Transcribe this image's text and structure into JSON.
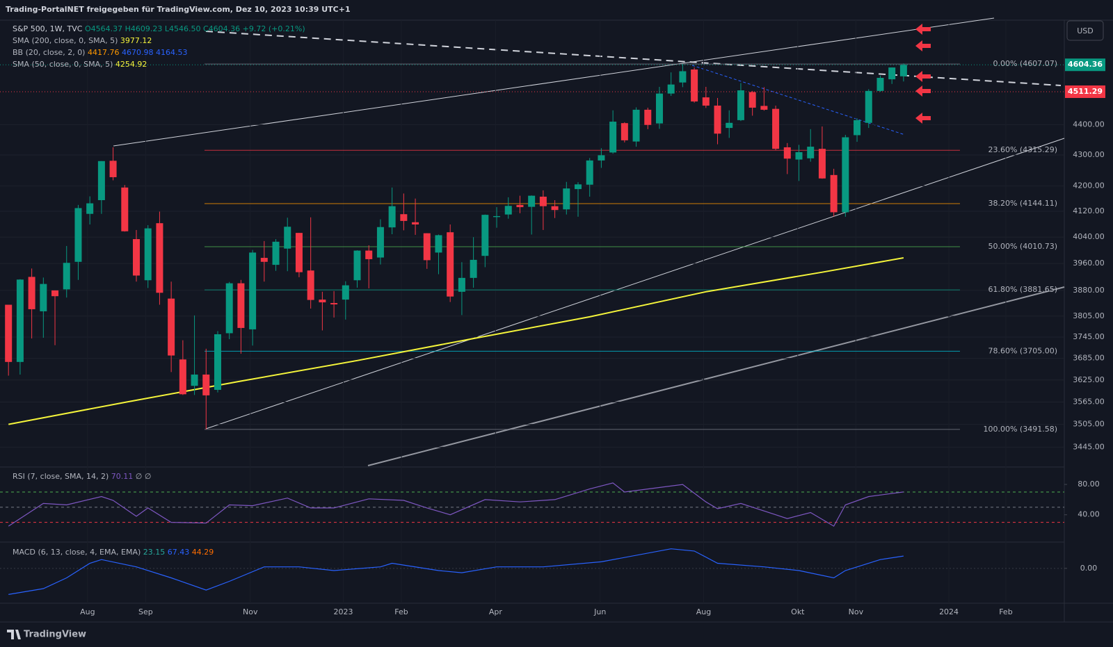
{
  "header": {
    "text": "Trading-PortalNET freigegeben für TradingView.com, Dez 10, 2023 10:39 UTC+1",
    "currency": "USD",
    "footer": "TradingView"
  },
  "legend": {
    "symbol": "S&P 500, 1W, TVC",
    "ohlc": "O4564.37 H4609.23 L4546.50 C4604.36",
    "change": "+9.72 (+0.21%)",
    "sma200": "SMA (200, close, 0, SMA, 5)",
    "sma200_value": "3977.12",
    "bb": "BB (20, close, 2, 0)",
    "bb_values": [
      "4417.76",
      "4670.98",
      "4164.53"
    ],
    "sma50": "SMA (50, close, 0, SMA, 5)",
    "sma50_value": "4254.92"
  },
  "chart_data": [
    {
      "type": "candlestick",
      "up_color": "#089981",
      "down_color": "#f23645",
      "log_scale": true,
      "grid": true,
      "xlim": [
        -0.73,
        90.83
      ],
      "ylim": [
        3397,
        4763
      ],
      "xticks": [
        {
          "value": 6.8,
          "label": "Aug"
        },
        {
          "value": 11.8,
          "label": "Sep"
        },
        {
          "value": 20.8,
          "label": "Nov"
        },
        {
          "value": 28.8,
          "label": "2023"
        },
        {
          "value": 33.8,
          "label": "Feb"
        },
        {
          "value": 41.9,
          "label": "Apr"
        },
        {
          "value": 50.9,
          "label": "Jun"
        },
        {
          "value": 59.8,
          "label": "Aug"
        },
        {
          "value": 67.9,
          "label": "Okt"
        },
        {
          "value": 72.9,
          "label": "Nov"
        },
        {
          "value": 80.9,
          "label": "2024"
        },
        {
          "value": 85.8,
          "label": "Feb"
        }
      ],
      "yticks": [
        {
          "value": 4400,
          "label": "4400.00"
        },
        {
          "value": 4300,
          "label": "4300.00"
        },
        {
          "value": 4200,
          "label": "4200.00"
        },
        {
          "value": 4120,
          "label": "4120.00"
        },
        {
          "value": 4040,
          "label": "4040.00"
        },
        {
          "value": 3960,
          "label": "3960.00"
        },
        {
          "value": 3880,
          "label": "3880.00"
        },
        {
          "value": 3805,
          "label": "3805.00"
        },
        {
          "value": 3745,
          "label": "3745.00"
        },
        {
          "value": 3685,
          "label": "3685.00"
        },
        {
          "value": 3625,
          "label": "3625.00"
        },
        {
          "value": 3565,
          "label": "3565.00"
        },
        {
          "value": 3505,
          "label": "3505.00"
        },
        {
          "value": 3445,
          "label": "3445.00"
        }
      ],
      "open": [
        3838,
        3675,
        3920,
        3819,
        3880,
        3883,
        3965,
        4112,
        4155,
        4281,
        4195,
        4034,
        3910,
        4083,
        3856,
        3682,
        3609,
        3640,
        3598,
        3756,
        3901,
        3767,
        3977,
        3956,
        4005,
        4053,
        3939,
        3853,
        3843,
        3853,
        3910,
        3999,
        3978,
        4070,
        4111,
        4086,
        4052,
        3993,
        4055,
        3876,
        3917,
        3983,
        4102,
        4110,
        4140,
        4134,
        4166,
        4136,
        4126,
        4190,
        4204,
        4282,
        4308,
        4405,
        4344,
        4450,
        4404,
        4505,
        4543,
        4588,
        4492,
        4464,
        4389,
        4415,
        4510,
        4463,
        4453,
        4325,
        4285,
        4289,
        4320,
        4235,
        4117,
        4365,
        4406,
        4514,
        4554,
        4564.37
      ],
      "high": [
        3838,
        3913,
        3945,
        3918,
        3880,
        4013,
        4140,
        4167,
        4280,
        4325,
        4203,
        4062,
        4077,
        4119,
        3906,
        3736,
        3807,
        3712,
        3762,
        3905,
        3911,
        4001,
        4028,
        4034,
        4100,
        4053,
        4101,
        3876,
        3878,
        3907,
        4000,
        4015,
        4095,
        4195,
        4176,
        4160,
        4052,
        4048,
        4079,
        3964,
        4040,
        4110,
        4133,
        4164,
        4169,
        4170,
        4186,
        4155,
        4213,
        4212,
        4290,
        4322,
        4448,
        4408,
        4458,
        4457,
        4528,
        4578,
        4607,
        4595,
        4528,
        4490,
        4448,
        4541,
        4514,
        4527,
        4464,
        4339,
        4333,
        4385,
        4394,
        4255,
        4366,
        4421,
        4520,
        4567,
        4595,
        4609.23
      ],
      "low": [
        3637,
        3640,
        3741,
        3743,
        3722,
        3859,
        3911,
        4079,
        4112,
        4218,
        4057,
        3906,
        3887,
        3838,
        3647,
        3584,
        3584,
        3492,
        3591,
        3739,
        3698,
        3721,
        3906,
        3938,
        3937,
        3919,
        3827,
        3764,
        3801,
        3795,
        3888,
        3886,
        3957,
        4049,
        4061,
        4047,
        3944,
        3928,
        3846,
        3808,
        3888,
        3949,
        4069,
        4097,
        4114,
        4048,
        4062,
        4099,
        4110,
        4103,
        4166,
        4258,
        4304,
        4341,
        4327,
        4385,
        4386,
        4497,
        4527,
        4474,
        4456,
        4335,
        4356,
        4412,
        4430,
        4447,
        4316,
        4238,
        4216,
        4278,
        4223,
        4104,
        4103,
        4343,
        4389,
        4511,
        4538,
        4546.5
      ],
      "close": [
        3675,
        3912,
        3825,
        3899,
        3863,
        3962,
        4130,
        4145,
        4280,
        4228,
        4058,
        3924,
        4067,
        3873,
        3693,
        3586,
        3640,
        3583,
        3753,
        3901,
        3771,
        3993,
        3965,
        4026,
        4072,
        3934,
        3852,
        3845,
        3839,
        3895,
        3999,
        3973,
        4071,
        4136,
        4090,
        4079,
        3970,
        4046,
        3862,
        3917,
        3971,
        4109,
        4105,
        4137,
        4133,
        4169,
        4136,
        4124,
        4192,
        4205,
        4282,
        4299,
        4410,
        4348,
        4450,
        4399,
        4505,
        4536,
        4582,
        4478,
        4464,
        4370,
        4406,
        4516,
        4457,
        4450,
        4320,
        4288,
        4309,
        4327,
        4224,
        4117,
        4358,
        4415,
        4514,
        4559,
        4595,
        4604.36
      ],
      "sma200": {
        "color": "#f5f53b",
        "x": [
          0,
          10,
          20,
          30,
          40,
          50,
          60,
          70,
          77
        ],
        "values": [
          3505,
          3564,
          3622,
          3679,
          3741,
          3803,
          3876,
          3934,
          3977.12
        ]
      },
      "fib": [
        {
          "label": "0.00%",
          "price": 4607.07,
          "color": "#787b86"
        },
        {
          "label": "23.60%",
          "price": 4315.29,
          "color": "#f23645"
        },
        {
          "label": "38.20%",
          "price": 4144.11,
          "color": "#ff9800"
        },
        {
          "label": "50.00%",
          "price": 4010.73,
          "color": "#4caf50"
        },
        {
          "label": "61.80%",
          "price": 3881.65,
          "color": "#089981"
        },
        {
          "label": "78.60%",
          "price": {
            "value": 3705,
            "label": "3705.00"
          },
          "color": "#00bcd4"
        },
        {
          "label": "100.00%",
          "price": 3491.58,
          "color": "#787b86"
        }
      ],
      "last_price": 4604.36,
      "alert_price": 4511.29
    },
    {
      "type": "line",
      "title": "RSI (7, close, SMA, 14, 2)",
      "value_label": "70.11",
      "extra": "∅ ∅",
      "color": "#7e57c2",
      "xlim": [
        -0.73,
        90.83
      ],
      "ylim": [
        4,
        103
      ],
      "yticks": [
        {
          "value": 80,
          "label": "80.00"
        },
        {
          "value": 40,
          "label": "40.00"
        }
      ],
      "levels": [
        {
          "value": 70,
          "color": "#4caf50"
        },
        {
          "value": 50,
          "color": "#787b86"
        },
        {
          "value": 30,
          "color": "#f23645"
        }
      ],
      "x": [
        0,
        3,
        5,
        8,
        9,
        11,
        12,
        14,
        17,
        19,
        21,
        24,
        26,
        28,
        31,
        34,
        36,
        38,
        41,
        44,
        47,
        50,
        52,
        53,
        55,
        58,
        60,
        61,
        63,
        66,
        67,
        69,
        71,
        72,
        74,
        77
      ],
      "values": [
        25,
        55,
        53,
        64,
        59,
        38,
        49,
        30,
        29,
        53,
        52,
        62,
        49,
        49,
        61,
        59,
        49,
        40,
        60,
        57,
        60,
        74,
        82,
        70,
        74,
        80,
        57,
        48,
        55,
        40,
        35,
        43,
        25,
        53,
        64,
        70.11
      ]
    },
    {
      "type": "macd",
      "title": "MACD (6, 13, close, 4, EMA, EMA)",
      "legend_values": [
        "23.15",
        "67.43",
        "44.29"
      ],
      "legend_colors": [
        "#26a69a",
        "#2962ff",
        "#ff6d00"
      ],
      "color": "#2962ff",
      "xlim": [
        -0.73,
        90.83
      ],
      "ylim": [
        -191,
        144
      ],
      "yticks": [
        {
          "value": 0,
          "label": "0.00"
        }
      ],
      "x": [
        0,
        3,
        5,
        7,
        8,
        11,
        14,
        17,
        19,
        22,
        25,
        28,
        32,
        33,
        37,
        39,
        42,
        46,
        51,
        57,
        59,
        61,
        65,
        68,
        71,
        72,
        75,
        77
      ],
      "values": [
        -143,
        -111,
        -52,
        28,
        48,
        8,
        -52,
        -119,
        -71,
        8,
        8,
        -12,
        8,
        28,
        -12,
        -24,
        8,
        8,
        36,
        107,
        95,
        28,
        8,
        -12,
        -52,
        -12,
        48,
        67.43
      ]
    }
  ]
}
